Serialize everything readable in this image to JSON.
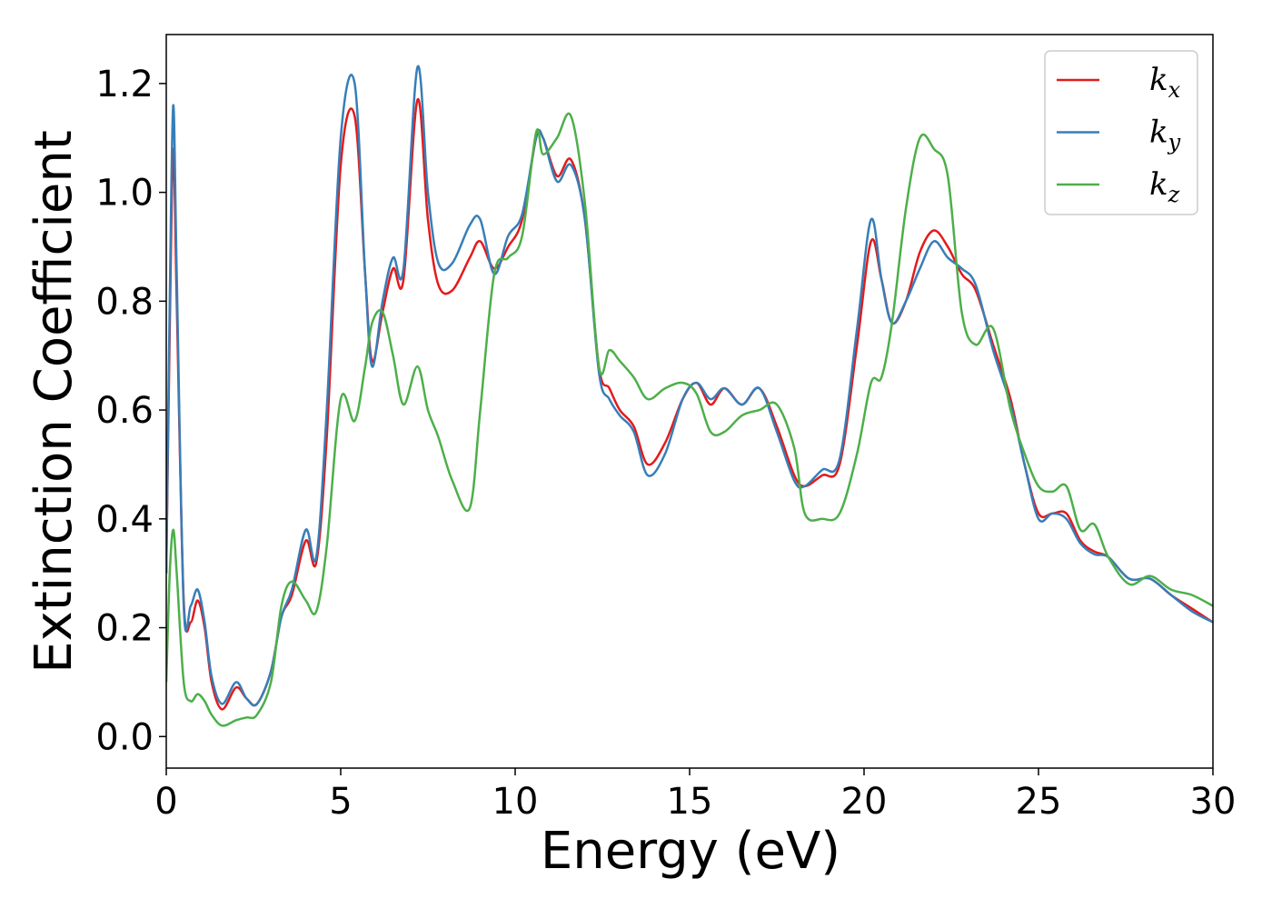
{
  "chart_data": {
    "type": "line",
    "xlabel": "Energy (eV)",
    "ylabel": "Extinction Coefficient",
    "xlim": [
      0,
      30
    ],
    "ylim": [
      -0.058,
      1.29
    ],
    "xticks": [
      0,
      5,
      10,
      15,
      20,
      25,
      30
    ],
    "yticks": [
      {
        "value": 0,
        "label": "0.0"
      },
      0.2,
      0.4,
      0.6,
      0.8,
      {
        "value": 1,
        "label": "1.0"
      },
      1.2
    ],
    "grid": false,
    "legend": "upper right",
    "x": [
      0,
      0.1,
      0.2,
      0.3,
      0.5,
      0.7,
      0.9,
      1.1,
      1.3,
      1.6,
      2.0,
      2.3,
      2.6,
      3.0,
      3.3,
      3.6,
      4.0,
      4.3,
      4.6,
      5.0,
      5.4,
      5.7,
      5.9,
      6.2,
      6.5,
      6.8,
      7.2,
      7.5,
      7.8,
      8.2,
      8.7,
      9.0,
      9.4,
      9.8,
      10.2,
      10.6,
      10.8,
      11.2,
      11.6,
      12.0,
      12.4,
      12.7,
      13.0,
      13.4,
      13.8,
      14.3,
      14.8,
      15.2,
      15.6,
      16.0,
      16.5,
      17.0,
      17.5,
      18.0,
      18.3,
      18.8,
      19.3,
      19.8,
      20.2,
      20.5,
      20.8,
      21.2,
      21.6,
      22.0,
      22.4,
      22.8,
      23.2,
      23.7,
      24.2,
      24.6,
      25.0,
      25.4,
      25.8,
      26.2,
      26.6,
      27.0,
      27.6,
      28.2,
      28.8,
      29.4,
      30.0
    ],
    "series": [
      {
        "name": "kx",
        "color": "#e41a1c",
        "values": [
          0.3,
          0.75,
          1.08,
          0.8,
          0.25,
          0.21,
          0.25,
          0.2,
          0.1,
          0.05,
          0.09,
          0.07,
          0.06,
          0.12,
          0.22,
          0.26,
          0.36,
          0.32,
          0.55,
          1.05,
          1.14,
          0.85,
          0.69,
          0.78,
          0.86,
          0.84,
          1.17,
          0.95,
          0.83,
          0.82,
          0.88,
          0.91,
          0.86,
          0.9,
          0.95,
          1.1,
          1.1,
          1.03,
          1.06,
          0.95,
          0.68,
          0.64,
          0.6,
          0.57,
          0.5,
          0.54,
          0.62,
          0.65,
          0.61,
          0.64,
          0.61,
          0.64,
          0.57,
          0.48,
          0.46,
          0.48,
          0.5,
          0.72,
          0.91,
          0.84,
          0.76,
          0.8,
          0.89,
          0.93,
          0.9,
          0.85,
          0.82,
          0.72,
          0.62,
          0.5,
          0.41,
          0.41,
          0.41,
          0.36,
          0.34,
          0.33,
          0.29,
          0.29,
          0.26,
          0.235,
          0.21
        ]
      },
      {
        "name": "ky",
        "color": "#377eb8",
        "values": [
          0.3,
          0.8,
          1.16,
          0.85,
          0.24,
          0.24,
          0.27,
          0.21,
          0.11,
          0.06,
          0.1,
          0.07,
          0.06,
          0.12,
          0.22,
          0.27,
          0.38,
          0.33,
          0.6,
          1.1,
          1.2,
          0.85,
          0.68,
          0.8,
          0.88,
          0.86,
          1.23,
          1.0,
          0.87,
          0.87,
          0.94,
          0.95,
          0.85,
          0.92,
          0.96,
          1.1,
          1.1,
          1.02,
          1.05,
          0.95,
          0.67,
          0.62,
          0.59,
          0.56,
          0.48,
          0.52,
          0.62,
          0.65,
          0.62,
          0.64,
          0.61,
          0.64,
          0.56,
          0.47,
          0.46,
          0.49,
          0.51,
          0.75,
          0.95,
          0.84,
          0.76,
          0.8,
          0.86,
          0.91,
          0.88,
          0.86,
          0.83,
          0.71,
          0.61,
          0.5,
          0.4,
          0.41,
          0.4,
          0.355,
          0.335,
          0.33,
          0.29,
          0.29,
          0.26,
          0.23,
          0.21
        ]
      },
      {
        "name": "kz",
        "color": "#4daf4a",
        "values": [
          0.1,
          0.3,
          0.38,
          0.3,
          0.1,
          0.065,
          0.078,
          0.065,
          0.04,
          0.02,
          0.03,
          0.035,
          0.04,
          0.1,
          0.24,
          0.285,
          0.25,
          0.23,
          0.35,
          0.62,
          0.58,
          0.68,
          0.76,
          0.78,
          0.7,
          0.61,
          0.68,
          0.6,
          0.55,
          0.47,
          0.42,
          0.6,
          0.85,
          0.88,
          0.92,
          1.11,
          1.07,
          1.1,
          1.14,
          0.98,
          0.68,
          0.71,
          0.69,
          0.66,
          0.62,
          0.64,
          0.65,
          0.63,
          0.56,
          0.56,
          0.59,
          0.6,
          0.61,
          0.53,
          0.41,
          0.4,
          0.41,
          0.52,
          0.65,
          0.66,
          0.76,
          0.97,
          1.1,
          1.08,
          1.03,
          0.78,
          0.72,
          0.75,
          0.6,
          0.52,
          0.46,
          0.45,
          0.46,
          0.38,
          0.39,
          0.33,
          0.28,
          0.295,
          0.27,
          0.26,
          0.24
        ]
      }
    ]
  }
}
